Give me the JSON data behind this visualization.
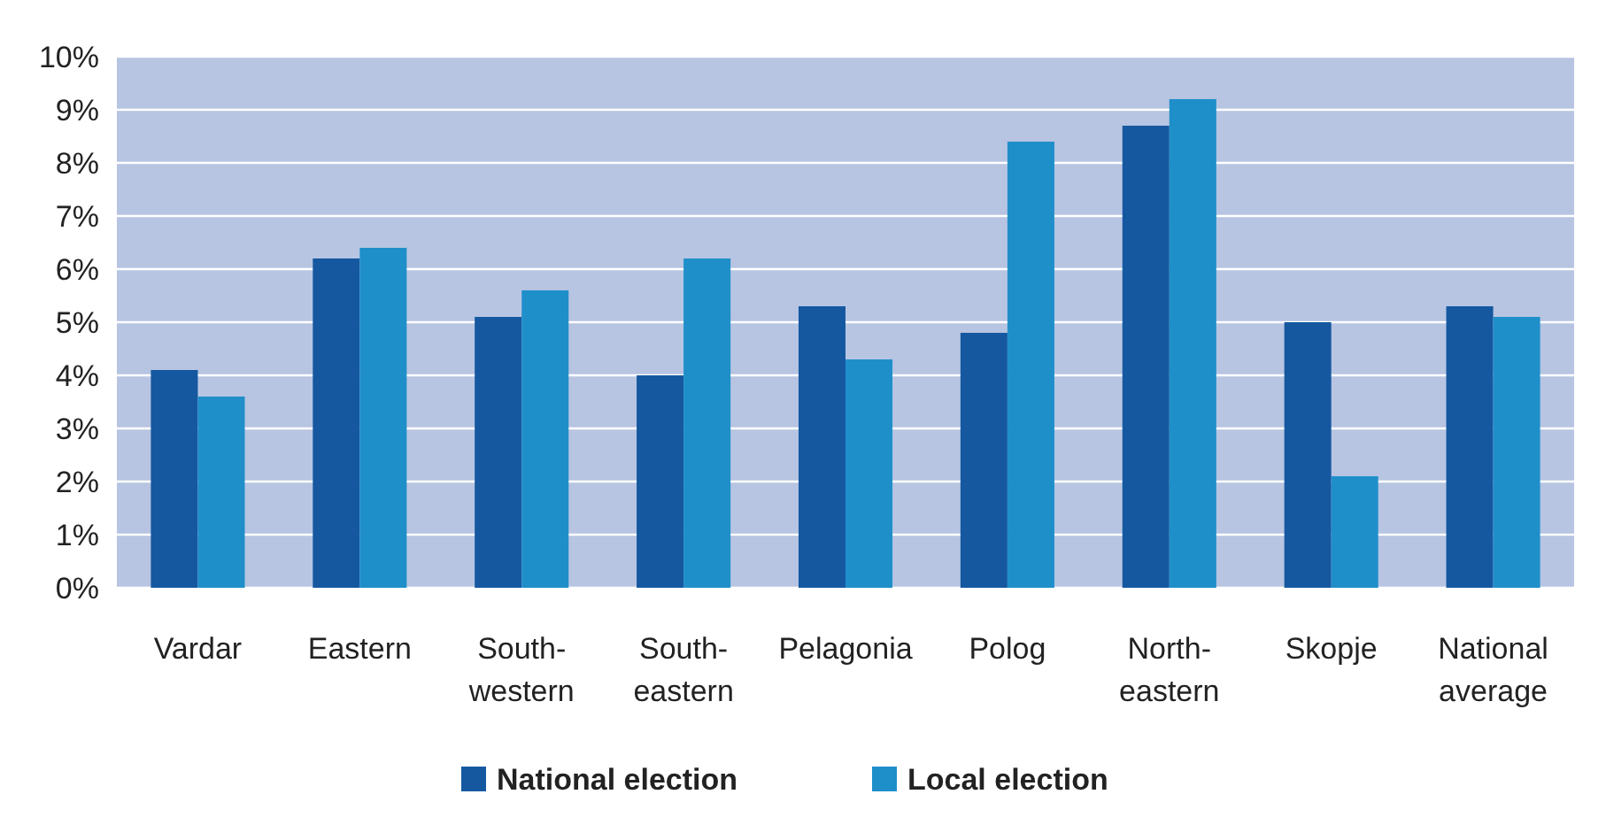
{
  "chart_data": {
    "type": "bar",
    "categories": [
      "Vardar",
      "Eastern",
      "South-western",
      "South-eastern",
      "Pelagonia",
      "Polog",
      "North-eastern",
      "Skopje",
      "National average"
    ],
    "series": [
      {
        "name": "National election",
        "color": "#1558a0",
        "values": [
          4.1,
          6.2,
          5.1,
          4.0,
          5.3,
          4.8,
          8.7,
          5.0,
          5.3
        ]
      },
      {
        "name": "Local election",
        "color": "#1f8fca",
        "values": [
          3.6,
          6.4,
          5.6,
          6.2,
          4.3,
          8.4,
          9.2,
          2.1,
          5.1
        ]
      }
    ],
    "ylim": [
      0,
      10
    ],
    "yticks": [
      {
        "value": 0,
        "label": "0%"
      },
      {
        "value": 1,
        "label": "1%"
      },
      {
        "value": 2,
        "label": "2%"
      },
      {
        "value": 3,
        "label": "3%"
      },
      {
        "value": 4,
        "label": "4%"
      },
      {
        "value": 5,
        "label": "5%"
      },
      {
        "value": 6,
        "label": "6%"
      },
      {
        "value": 7,
        "label": "7%"
      },
      {
        "value": 8,
        "label": "8%"
      },
      {
        "value": 9,
        "label": "9%"
      },
      {
        "value": 10,
        "label": "10%"
      }
    ],
    "grid": "y",
    "legend": "bottom"
  }
}
